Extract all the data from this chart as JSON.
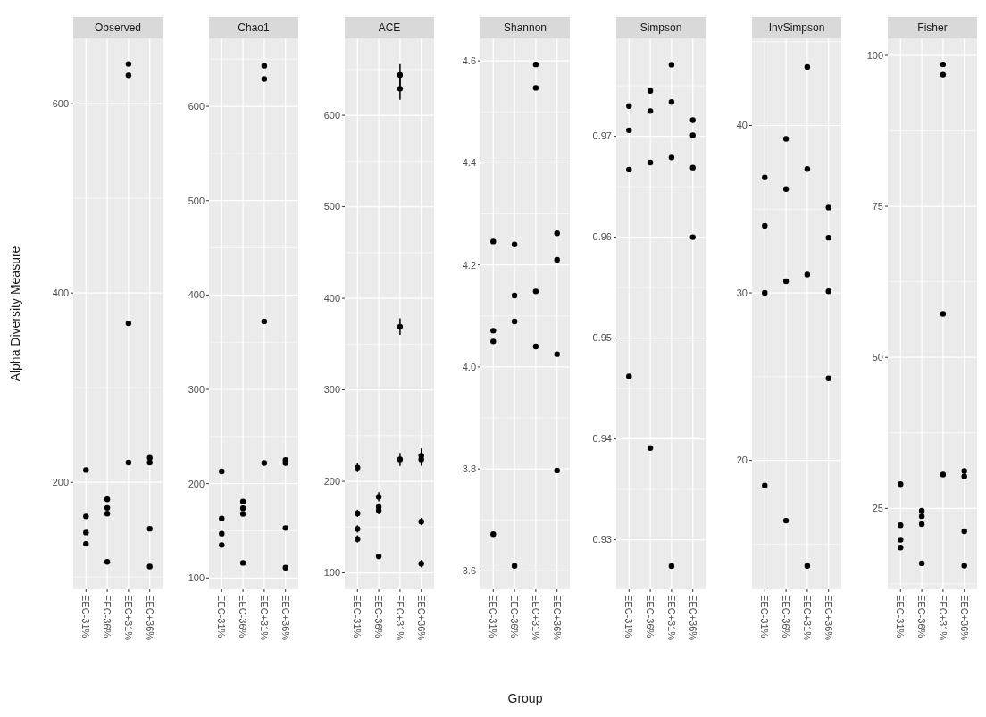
{
  "chart_data": [
    {
      "type": "scatter",
      "title": "Observed",
      "ylabel": "Alpha Diversity Measure",
      "categories": [
        "EEC-31%",
        "EEC-36%",
        "EEC+31%",
        "EEC+36%"
      ],
      "series": [
        {
          "color": "#000000",
          "x": [
            "EEC-31%",
            "EEC-31%",
            "EEC-31%",
            "EEC-31%",
            "EEC-36%",
            "EEC-36%",
            "EEC-36%",
            "EEC-36%",
            "EEC+31%",
            "EEC+31%",
            "EEC+31%",
            "EEC+31%",
            "EEC+36%",
            "EEC+36%",
            "EEC+36%",
            "EEC+36%"
          ],
          "values": [
            213,
            164,
            147,
            135,
            182,
            173,
            167,
            116,
            642,
            630,
            368,
            221,
            226,
            221,
            151,
            111
          ]
        }
      ],
      "ylim": [
        87,
        669
      ],
      "yticks": [
        200,
        400,
        600
      ],
      "grid": true,
      "marker": "circle"
    },
    {
      "type": "scatter",
      "title": "Chao1",
      "categories": [
        "EEC-31%",
        "EEC-36%",
        "EEC+31%",
        "EEC+36%"
      ],
      "series": [
        {
          "color": "#000000",
          "x": [
            "EEC-31%",
            "EEC-31%",
            "EEC-31%",
            "EEC-31%",
            "EEC-36%",
            "EEC-36%",
            "EEC-36%",
            "EEC-36%",
            "EEC+31%",
            "EEC+31%",
            "EEC+31%",
            "EEC+31%",
            "EEC+36%",
            "EEC+36%",
            "EEC+36%",
            "EEC+36%"
          ],
          "values": [
            213,
            163,
            147,
            135,
            181,
            174,
            168,
            116,
            643,
            629,
            372,
            222,
            225,
            222,
            153,
            111
          ]
        }
      ],
      "ylim": [
        88,
        672
      ],
      "yticks": [
        100,
        200,
        300,
        400,
        500,
        600
      ],
      "grid": true,
      "marker": "circle"
    },
    {
      "type": "scatter",
      "title": "ACE",
      "categories": [
        "EEC-31%",
        "EEC-36%",
        "EEC+31%",
        "EEC+36%"
      ],
      "series": [
        {
          "color": "#000000",
          "x": [
            "EEC-31%",
            "EEC-31%",
            "EEC-31%",
            "EEC-31%",
            "EEC-36%",
            "EEC-36%",
            "EEC-36%",
            "EEC-36%",
            "EEC+31%",
            "EEC+31%",
            "EEC+31%",
            "EEC+31%",
            "EEC+36%",
            "EEC+36%",
            "EEC+36%",
            "EEC+36%"
          ],
          "values": [
            215,
            165,
            148,
            137,
            183,
            172,
            168,
            118,
            644,
            629,
            369,
            224,
            228,
            224,
            156,
            110
          ],
          "errors": [
            5,
            4,
            4,
            4,
            5,
            4,
            4,
            3,
            12,
            12,
            9,
            7,
            8,
            7,
            4,
            4
          ]
        }
      ],
      "ylim": [
        82,
        684
      ],
      "yticks": [
        100,
        200,
        300,
        400,
        500,
        600
      ],
      "grid": true,
      "marker": "circle"
    },
    {
      "type": "scatter",
      "title": "Shannon",
      "xlabel": "Group",
      "categories": [
        "EEC-31%",
        "EEC-36%",
        "EEC+31%",
        "EEC+36%"
      ],
      "series": [
        {
          "color": "#000000",
          "x": [
            "EEC-31%",
            "EEC-31%",
            "EEC-31%",
            "EEC-31%",
            "EEC-36%",
            "EEC-36%",
            "EEC-36%",
            "EEC-36%",
            "EEC+31%",
            "EEC+31%",
            "EEC+31%",
            "EEC+31%",
            "EEC+36%",
            "EEC+36%",
            "EEC+36%",
            "EEC+36%"
          ],
          "values": [
            4.246,
            4.071,
            4.05,
            3.672,
            4.24,
            4.14,
            4.089,
            3.61,
            4.593,
            4.547,
            4.148,
            4.04,
            4.262,
            4.21,
            4.025,
            3.797
          ]
        }
      ],
      "ylim": [
        3.564,
        4.644
      ],
      "yticks": [
        3.6,
        3.8,
        {
          "value": 4,
          "label": "4.0"
        },
        4.2,
        4.4,
        4.6
      ],
      "grid": true,
      "marker": "circle"
    },
    {
      "type": "scatter",
      "title": "Simpson",
      "categories": [
        "EEC-31%",
        "EEC-36%",
        "EEC+31%",
        "EEC+36%"
      ],
      "series": [
        {
          "color": "#000000",
          "x": [
            "EEC-31%",
            "EEC-31%",
            "EEC-31%",
            "EEC-31%",
            "EEC-36%",
            "EEC-36%",
            "EEC-36%",
            "EEC-36%",
            "EEC+31%",
            "EEC+31%",
            "EEC+31%",
            "EEC+31%",
            "EEC+36%",
            "EEC+36%",
            "EEC+36%",
            "EEC+36%"
          ],
          "values": [
            0.973,
            0.9706,
            0.9667,
            0.9462,
            0.9745,
            0.9725,
            0.9674,
            0.9391,
            0.9771,
            0.9734,
            0.9679,
            0.9274,
            0.9716,
            0.9701,
            0.9669,
            0.96
          ]
        }
      ],
      "ylim": [
        0.9251,
        0.9797
      ],
      "yticks": [
        0.93,
        0.94,
        0.95,
        0.96,
        0.97
      ],
      "grid": true,
      "marker": "circle"
    },
    {
      "type": "scatter",
      "title": "InvSimpson",
      "categories": [
        "EEC-31%",
        "EEC-36%",
        "EEC+31%",
        "EEC+36%"
      ],
      "series": [
        {
          "color": "#000000",
          "x": [
            "EEC-31%",
            "EEC-31%",
            "EEC-31%",
            "EEC-31%",
            "EEC-36%",
            "EEC-36%",
            "EEC-36%",
            "EEC-36%",
            "EEC+31%",
            "EEC+31%",
            "EEC+31%",
            "EEC+31%",
            "EEC+36%",
            "EEC+36%",
            "EEC+36%",
            "EEC+36%"
          ],
          "values": [
            36.9,
            34,
            30,
            18.5,
            39.2,
            36.2,
            30.7,
            16.4,
            43.5,
            37.4,
            31.1,
            13.7,
            35.1,
            33.3,
            30.1,
            24.9
          ]
        }
      ],
      "ylim": [
        12.3,
        45.2
      ],
      "yticks": [
        20,
        30,
        40
      ],
      "grid": true,
      "marker": "circle"
    },
    {
      "type": "scatter",
      "title": "Fisher",
      "categories": [
        "EEC-31%",
        "EEC-36%",
        "EEC+31%",
        "EEC+36%"
      ],
      "series": [
        {
          "color": "#000000",
          "x": [
            "EEC-31%",
            "EEC-31%",
            "EEC-31%",
            "EEC-31%",
            "EEC-36%",
            "EEC-36%",
            "EEC-36%",
            "EEC-36%",
            "EEC+31%",
            "EEC+31%",
            "EEC+31%",
            "EEC+31%",
            "EEC+36%",
            "EEC+36%",
            "EEC+36%",
            "EEC+36%"
          ],
          "values": [
            29,
            22.2,
            19.8,
            18.5,
            24.6,
            23.7,
            22.4,
            15.9,
            98.5,
            96.8,
            57.2,
            30.6,
            31.2,
            30.3,
            21.2,
            15.5
          ]
        }
      ],
      "ylim": [
        11.6,
        102.8
      ],
      "yticks": [
        25,
        50,
        75,
        100
      ],
      "grid": true,
      "marker": "circle"
    }
  ]
}
